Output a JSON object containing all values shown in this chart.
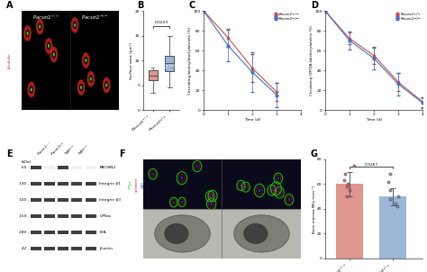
{
  "panel_label_fontsize": 7,
  "panel_label_weight": "bold",
  "box_B": {
    "pacsin2pp": [
      3.5,
      5.5,
      6.5,
      7.0,
      7.5,
      8.5,
      16
    ],
    "pacsin2mm": [
      4.5,
      7.0,
      8.5,
      9.5,
      10.5,
      11.5,
      15
    ],
    "ylabel": "Surface area (μm²)",
    "ylim": [
      0,
      20
    ],
    "yticks": [
      0,
      5,
      10,
      15,
      20
    ],
    "pval": "0.0223",
    "colors": [
      "#d4736a",
      "#7b9ecc"
    ]
  },
  "line_C": {
    "time": [
      0,
      1,
      2,
      3
    ],
    "pp_mean": [
      100,
      73,
      42,
      18
    ],
    "pp_err": [
      2,
      9,
      14,
      9
    ],
    "mm_mean": [
      100,
      65,
      38,
      15
    ],
    "mm_err": [
      2,
      16,
      20,
      12
    ],
    "ylabel": "Circulating biotinylated platelets (%)",
    "xlabel": "Time (d)",
    "xlim": [
      0,
      4
    ],
    "ylim": [
      0,
      100
    ],
    "yticks": [
      0,
      20,
      40,
      60,
      80,
      100
    ],
    "colors_pp": "#c0504d",
    "colors_mm": "#4472c4",
    "legend_pp": "Pacsin2+/+",
    "legend_mm": "Pacsin2−/−"
  },
  "line_D": {
    "time": [
      0,
      1,
      2,
      3,
      4
    ],
    "pp_mean": [
      100,
      72,
      55,
      28,
      8
    ],
    "pp_err": [
      2,
      6,
      9,
      9,
      5
    ],
    "mm_mean": [
      100,
      70,
      52,
      26,
      7
    ],
    "mm_err": [
      2,
      9,
      11,
      11,
      5
    ],
    "ylabel": "Circulating CMFDA-labeled platelets (%)",
    "xlabel": "Time (d)",
    "xlim": [
      0,
      4
    ],
    "ylim": [
      0,
      100
    ],
    "yticks": [
      0,
      20,
      40,
      60,
      80,
      100
    ],
    "colors_pp": "#c0504d",
    "colors_mm": "#4472c4",
    "legend_pp": "Pacsin2+/+",
    "legend_mm": "Pacsin2−/−"
  },
  "wb_E": {
    "bands": [
      "PACSIN2",
      "Integrin β1",
      "Integrin β3",
      "GPIbα",
      "FilA",
      "β-actin"
    ],
    "kda": [
      "65",
      "130",
      "100",
      "150",
      "280",
      "42"
    ],
    "n_lanes": 4
  },
  "bar_G": {
    "values": [
      60,
      50
    ],
    "errors": [
      10,
      7
    ],
    "scatter_pp": [
      75,
      68,
      63,
      60,
      58,
      55,
      50
    ],
    "scatter_mm": [
      68,
      62,
      55,
      50,
      48,
      44,
      42
    ],
    "colors": [
      "#d4736a",
      "#7b9ecc"
    ],
    "ylabel": "Bone marrow MKs (mm⁻²)",
    "ylim": [
      0,
      80
    ],
    "yticks": [
      0,
      20,
      40,
      60,
      80
    ],
    "pval": "0.3267"
  },
  "bg_color": "#ffffff"
}
